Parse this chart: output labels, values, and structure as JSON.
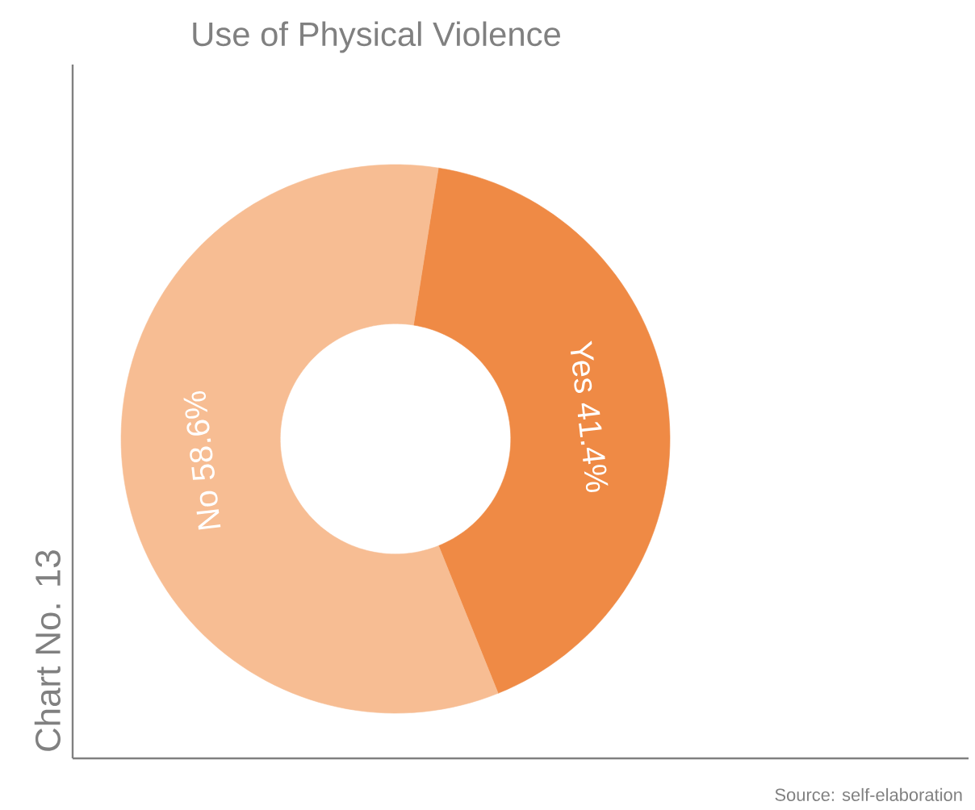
{
  "chart_data": {
    "type": "donut",
    "title": "Use of Physical Violence",
    "ylabel": "Chart No. 13",
    "categories": [
      "Yes",
      "No"
    ],
    "values": [
      41.4,
      58.6
    ],
    "value_labels": [
      "41.4%",
      "58.6%"
    ],
    "colors": [
      "#ef8a45",
      "#f7bd93"
    ],
    "annotations": [
      "Source: self-elaboration"
    ]
  }
}
